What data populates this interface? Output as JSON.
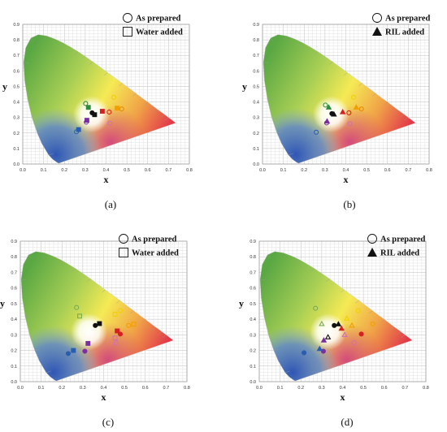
{
  "figure": {
    "panels": [
      {
        "caption": "(a)",
        "xlabel": "x",
        "ylabel": "y",
        "legend": [
          {
            "label": "As prepared",
            "marker": "circle-open"
          },
          {
            "label": "Water added",
            "marker": "square-open"
          }
        ]
      },
      {
        "caption": "(b)",
        "xlabel": "x",
        "ylabel": "y",
        "legend": [
          {
            "label": "As prepared",
            "marker": "circle-open"
          },
          {
            "label": "RIL added",
            "marker": "triangle-filled"
          }
        ]
      },
      {
        "caption": "(c)",
        "xlabel": "x",
        "ylabel": "y",
        "legend": [
          {
            "label": "As prepared",
            "marker": "circle-open"
          },
          {
            "label": "Water added",
            "marker": "square-open"
          }
        ]
      },
      {
        "caption": "(d)",
        "xlabel": "x",
        "ylabel": "y",
        "legend": [
          {
            "label": "As prepared",
            "marker": "circle-open"
          },
          {
            "label": "RIL added",
            "marker": "triangle-filled"
          }
        ]
      }
    ]
  },
  "chart_data": [
    {
      "type": "scatter",
      "xlabel": "x",
      "ylabel": "y",
      "xlim": [
        0,
        0.8
      ],
      "ylim": [
        0,
        0.9
      ],
      "xticks": [
        "0.0",
        "0.1",
        "0.2",
        "0.3",
        "0.4",
        "0.5",
        "0.6",
        "0.7",
        "0.8"
      ],
      "yticks": [
        "0.0",
        "0.1",
        "0.2",
        "0.3",
        "0.4",
        "0.5",
        "0.6",
        "0.7",
        "0.8",
        "0.9"
      ],
      "legend_position": "top-right",
      "series": [
        {
          "name": "As prepared",
          "marker": "circle",
          "points": [
            {
              "x": 0.437,
              "y": 0.43,
              "color": "#f0d000",
              "fill": false
            },
            {
              "x": 0.475,
              "y": 0.355,
              "color": "#e88a00",
              "fill": false
            },
            {
              "x": 0.302,
              "y": 0.39,
              "color": "#2f8a3a",
              "fill": false
            },
            {
              "x": 0.415,
              "y": 0.335,
              "color": "#d42020",
              "fill": false
            },
            {
              "x": 0.333,
              "y": 0.33,
              "color": "#111111",
              "fill": true
            },
            {
              "x": 0.305,
              "y": 0.27,
              "color": "#7a2ea0",
              "fill": false
            },
            {
              "x": 0.418,
              "y": 0.263,
              "color": "#d070b0",
              "fill": false
            },
            {
              "x": 0.258,
              "y": 0.208,
              "color": "#2a5db0",
              "fill": false
            }
          ]
        },
        {
          "name": "Water added",
          "marker": "square",
          "points": [
            {
              "x": 0.453,
              "y": 0.36,
              "color": "#f0a000",
              "fill": true
            },
            {
              "x": 0.382,
              "y": 0.34,
              "color": "#d42020",
              "fill": true
            },
            {
              "x": 0.315,
              "y": 0.365,
              "color": "#2f8a3a",
              "fill": true
            },
            {
              "x": 0.268,
              "y": 0.222,
              "color": "#2a5db0",
              "fill": true
            },
            {
              "x": 0.308,
              "y": 0.282,
              "color": "#7a2ea0",
              "fill": true
            },
            {
              "x": 0.345,
              "y": 0.318,
              "color": "#111111",
              "fill": true
            }
          ]
        }
      ]
    },
    {
      "type": "scatter",
      "xlabel": "x",
      "ylabel": "y",
      "xlim": [
        0,
        0.8
      ],
      "ylim": [
        0,
        0.9
      ],
      "xticks": [
        "0.0",
        "0.1",
        "0.2",
        "0.3",
        "0.4",
        "0.5",
        "0.6",
        "0.7",
        "0.8"
      ],
      "yticks": [
        "0.0",
        "0.1",
        "0.2",
        "0.3",
        "0.4",
        "0.5",
        "0.6",
        "0.7",
        "0.8",
        "0.9"
      ],
      "legend_position": "top-right",
      "series": [
        {
          "name": "As prepared",
          "marker": "circle",
          "points": [
            {
              "x": 0.437,
              "y": 0.43,
              "color": "#f0d000",
              "fill": false
            },
            {
              "x": 0.475,
              "y": 0.355,
              "color": "#e88a00",
              "fill": false
            },
            {
              "x": 0.302,
              "y": 0.38,
              "color": "#2f8a3a",
              "fill": false
            },
            {
              "x": 0.415,
              "y": 0.33,
              "color": "#d42020",
              "fill": false
            },
            {
              "x": 0.333,
              "y": 0.325,
              "color": "#111111",
              "fill": true
            },
            {
              "x": 0.308,
              "y": 0.265,
              "color": "#7a2ea0",
              "fill": false
            },
            {
              "x": 0.42,
              "y": 0.26,
              "color": "#d070b0",
              "fill": false
            },
            {
              "x": 0.258,
              "y": 0.205,
              "color": "#2a5db0",
              "fill": false
            }
          ]
        },
        {
          "name": "RIL added",
          "marker": "triangle",
          "points": [
            {
              "x": 0.45,
              "y": 0.365,
              "color": "#f0a000",
              "fill": true
            },
            {
              "x": 0.385,
              "y": 0.335,
              "color": "#d42020",
              "fill": true
            },
            {
              "x": 0.318,
              "y": 0.365,
              "color": "#2f8a3a",
              "fill": true
            },
            {
              "x": 0.343,
              "y": 0.32,
              "color": "#111111",
              "fill": true
            },
            {
              "x": 0.31,
              "y": 0.275,
              "color": "#7a2ea0",
              "fill": true
            }
          ]
        }
      ]
    },
    {
      "type": "scatter",
      "xlabel": "x",
      "ylabel": "y",
      "xlim": [
        0,
        0.8
      ],
      "ylim": [
        0,
        0.9
      ],
      "xticks": [
        "0.0",
        "0.1",
        "0.2",
        "0.3",
        "0.4",
        "0.5",
        "0.6",
        "0.7",
        "0.8"
      ],
      "yticks": [
        "0.0",
        "0.1",
        "0.2",
        "0.3",
        "0.4",
        "0.5",
        "0.6",
        "0.7",
        "0.8",
        "0.9"
      ],
      "legend_position": "top-right",
      "series": [
        {
          "name": "As prepared",
          "marker": "circle",
          "points": [
            {
              "x": 0.27,
              "y": 0.475,
              "color": "#7aaa50",
              "fill": false
            },
            {
              "x": 0.48,
              "y": 0.455,
              "color": "#f0d000",
              "fill": false
            },
            {
              "x": 0.36,
              "y": 0.36,
              "color": "#111111",
              "fill": true
            },
            {
              "x": 0.52,
              "y": 0.36,
              "color": "#f0a000",
              "fill": false
            },
            {
              "x": 0.48,
              "y": 0.305,
              "color": "#d42020",
              "fill": true
            },
            {
              "x": 0.46,
              "y": 0.248,
              "color": "#d070b0",
              "fill": false
            },
            {
              "x": 0.31,
              "y": 0.195,
              "color": "#7a2ea0",
              "fill": true
            },
            {
              "x": 0.23,
              "y": 0.18,
              "color": "#2a5db0",
              "fill": true
            }
          ]
        },
        {
          "name": "Water added",
          "marker": "square",
          "points": [
            {
              "x": 0.285,
              "y": 0.42,
              "color": "#7aaa50",
              "fill": false
            },
            {
              "x": 0.455,
              "y": 0.432,
              "color": "#f0d000",
              "fill": false
            },
            {
              "x": 0.38,
              "y": 0.372,
              "color": "#111111",
              "fill": true
            },
            {
              "x": 0.545,
              "y": 0.368,
              "color": "#f0a000",
              "fill": false
            },
            {
              "x": 0.465,
              "y": 0.325,
              "color": "#d42020",
              "fill": true
            },
            {
              "x": 0.455,
              "y": 0.28,
              "color": "#d070b0",
              "fill": false
            },
            {
              "x": 0.325,
              "y": 0.245,
              "color": "#7a2ea0",
              "fill": true
            },
            {
              "x": 0.255,
              "y": 0.2,
              "color": "#2a5db0",
              "fill": true
            }
          ]
        }
      ]
    },
    {
      "type": "scatter",
      "xlabel": "x",
      "ylabel": "y",
      "xlim": [
        0,
        0.8
      ],
      "ylim": [
        0,
        0.9
      ],
      "xticks": [
        "0.0",
        "0.1",
        "0.2",
        "0.3",
        "0.4",
        "0.5",
        "0.6",
        "0.7",
        "0.8"
      ],
      "yticks": [
        "0.0",
        "0.1",
        "0.2",
        "0.3",
        "0.4",
        "0.5",
        "0.6",
        "0.7",
        "0.8",
        "0.9"
      ],
      "legend_position": "top-right",
      "series": [
        {
          "name": "As prepared",
          "marker": "circle",
          "points": [
            {
              "x": 0.27,
              "y": 0.47,
              "color": "#7aaa50",
              "fill": false
            },
            {
              "x": 0.475,
              "y": 0.455,
              "color": "#f0d000",
              "fill": false
            },
            {
              "x": 0.36,
              "y": 0.36,
              "color": "#111111",
              "fill": true
            },
            {
              "x": 0.545,
              "y": 0.37,
              "color": "#f0a000",
              "fill": false
            },
            {
              "x": 0.49,
              "y": 0.305,
              "color": "#d42020",
              "fill": true
            },
            {
              "x": 0.455,
              "y": 0.25,
              "color": "#d070b0",
              "fill": false
            },
            {
              "x": 0.308,
              "y": 0.195,
              "color": "#7a2ea0",
              "fill": true
            },
            {
              "x": 0.215,
              "y": 0.185,
              "color": "#2a5db0",
              "fill": true
            }
          ]
        },
        {
          "name": "RIL added",
          "marker": "triangle",
          "points": [
            {
              "x": 0.3,
              "y": 0.37,
              "color": "#7aaa50",
              "fill": false
            },
            {
              "x": 0.42,
              "y": 0.405,
              "color": "#f0d000",
              "fill": false
            },
            {
              "x": 0.38,
              "y": 0.368,
              "color": "#111111",
              "fill": true
            },
            {
              "x": 0.445,
              "y": 0.36,
              "color": "#f0a000",
              "fill": false
            },
            {
              "x": 0.395,
              "y": 0.34,
              "color": "#d42020",
              "fill": true
            },
            {
              "x": 0.41,
              "y": 0.3,
              "color": "#d070b0",
              "fill": false
            },
            {
              "x": 0.33,
              "y": 0.285,
              "color": "#111111",
              "fill": false
            },
            {
              "x": 0.31,
              "y": 0.265,
              "color": "#7a2ea0",
              "fill": true
            },
            {
              "x": 0.29,
              "y": 0.21,
              "color": "#2a5db0",
              "fill": true
            }
          ]
        }
      ]
    }
  ]
}
